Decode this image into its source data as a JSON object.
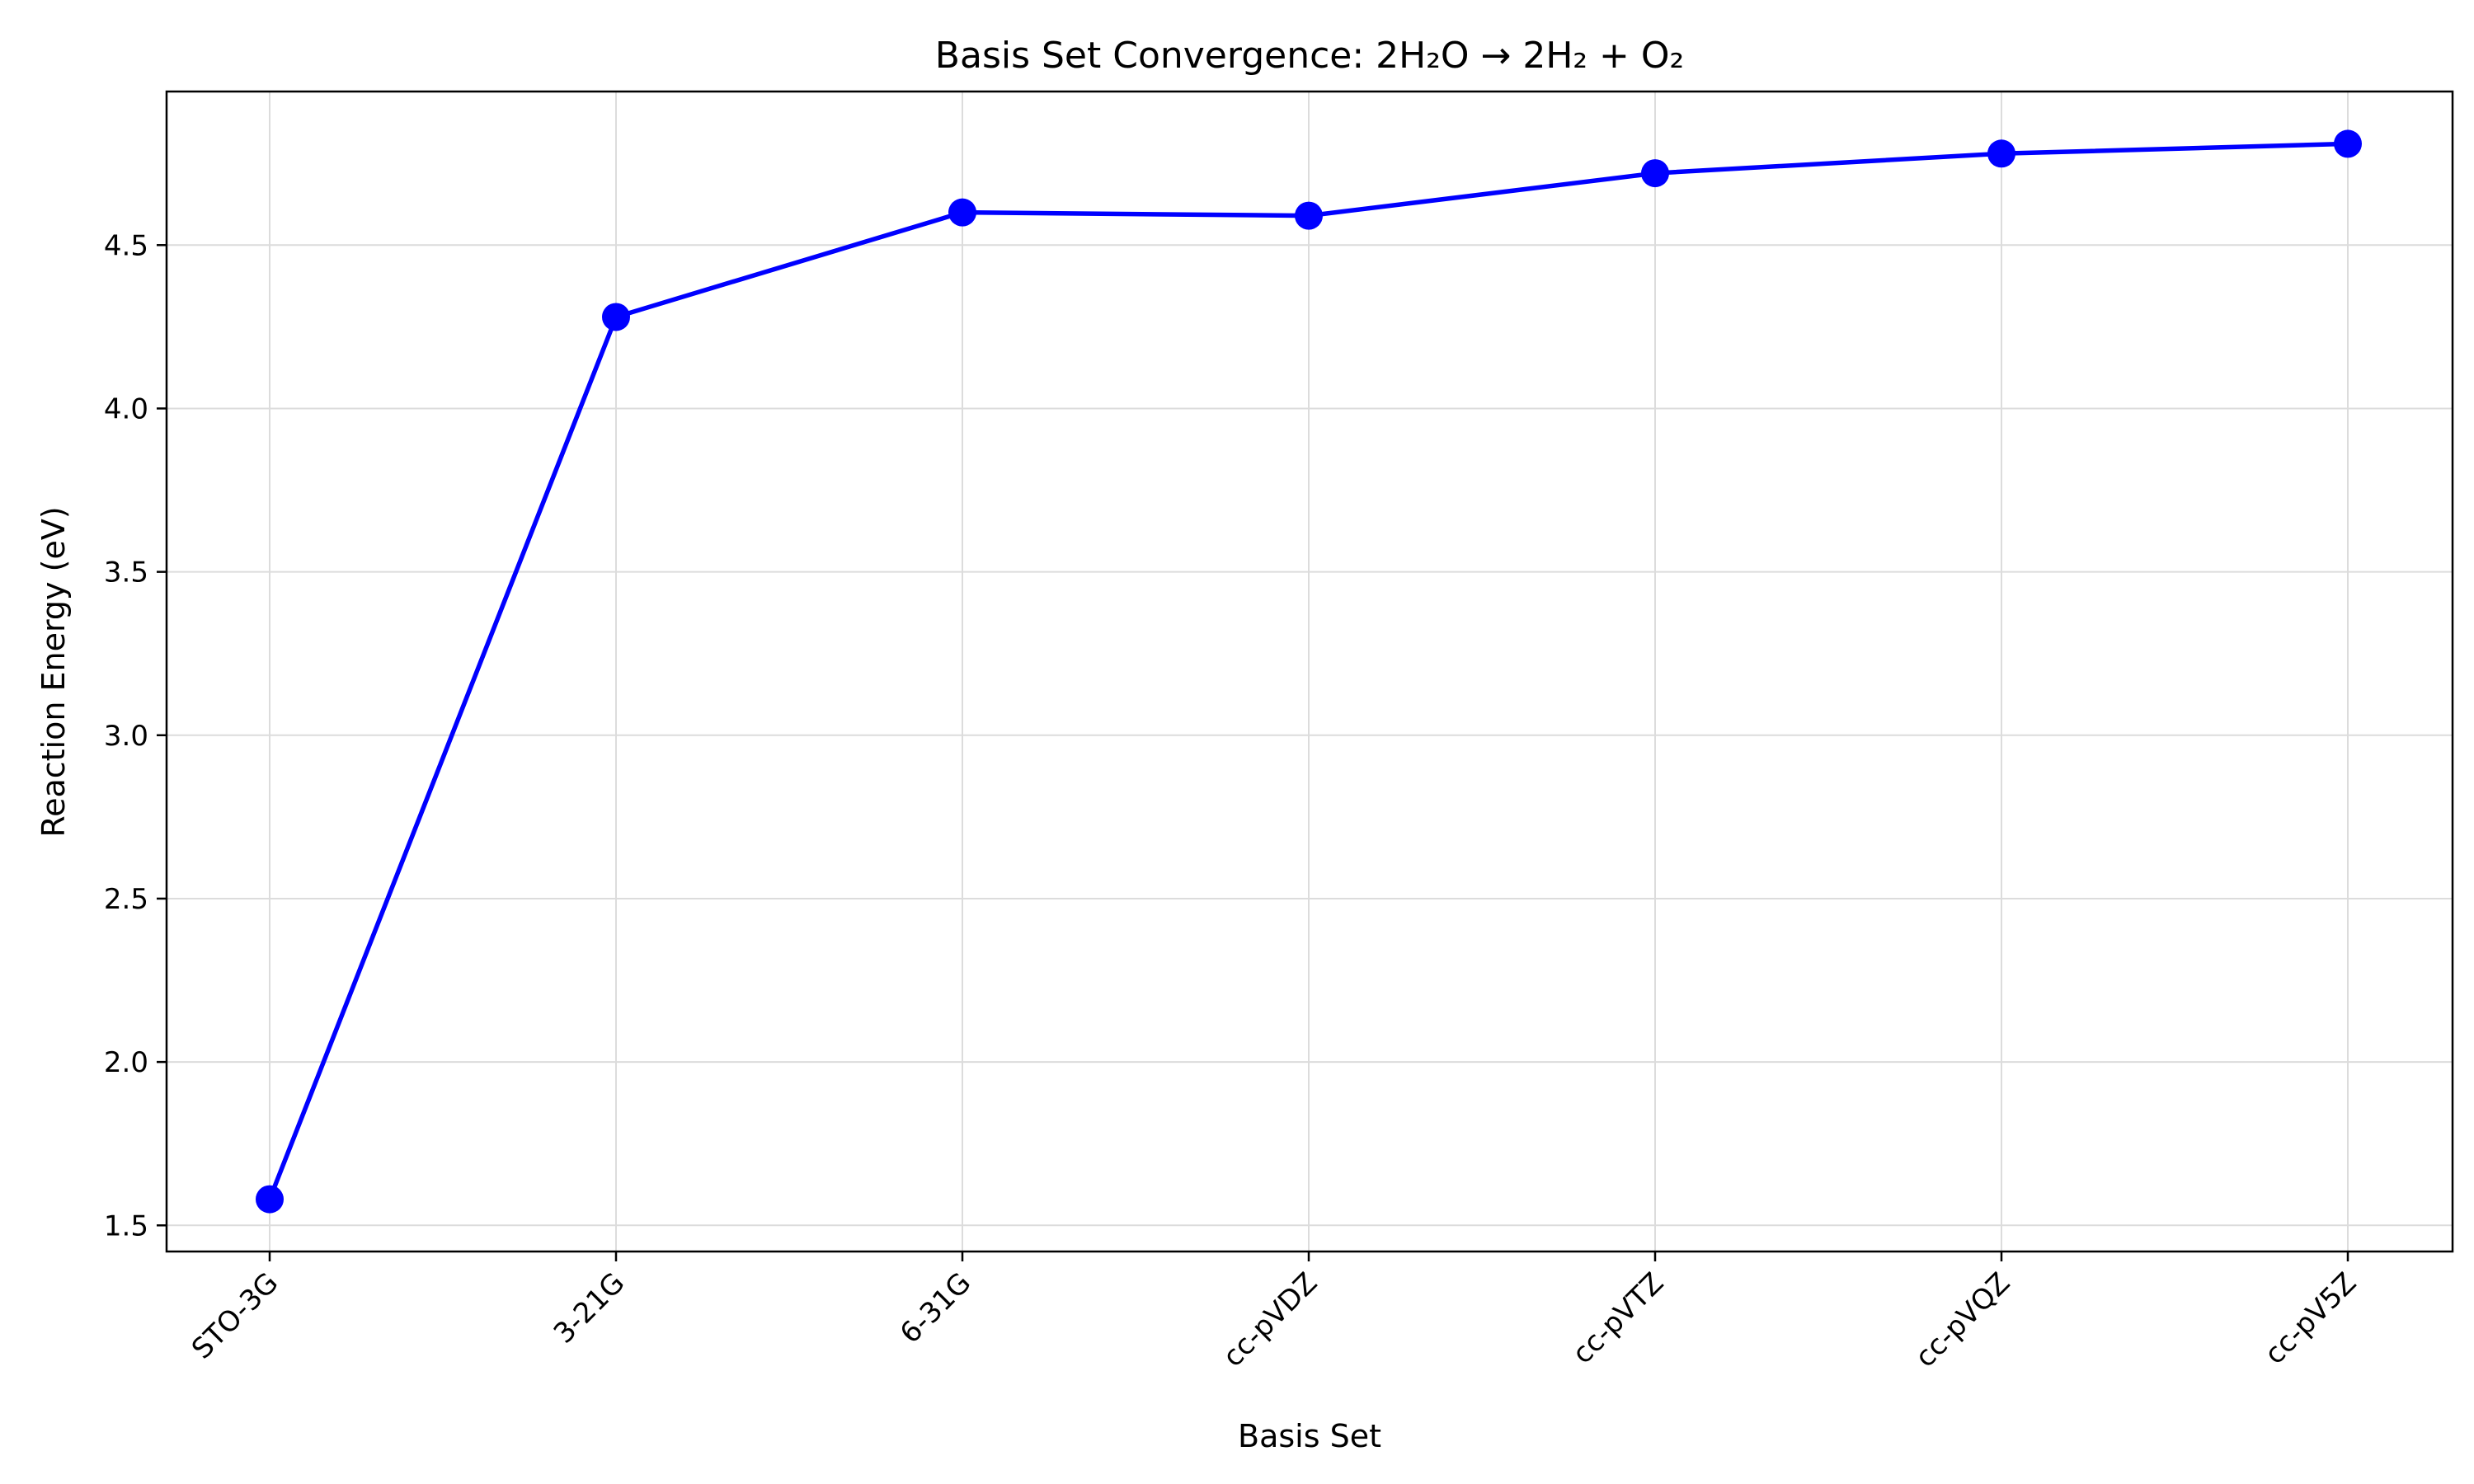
{
  "chart_data": {
    "type": "line",
    "title": "Basis Set Convergence: 2H₂O → 2H₂ + O₂",
    "xlabel": "Basis Set",
    "ylabel": "Reaction Energy (eV)",
    "categories": [
      "STO-3G",
      "3-21G",
      "6-31G",
      "cc-pVDZ",
      "cc-pVTZ",
      "cc-pVQZ",
      "cc-pV5Z"
    ],
    "series": [
      {
        "values": [
          1.58,
          4.28,
          4.6,
          4.59,
          4.72,
          4.78,
          4.81
        ]
      }
    ],
    "ylim": [
      1.42,
      4.97
    ],
    "yticks": [
      "1.5",
      "2.0",
      "2.5",
      "3.0",
      "3.5",
      "4.0",
      "4.5"
    ],
    "grid": true,
    "colors": {
      "line": "#0000ff",
      "marker": "#0000ff"
    }
  }
}
